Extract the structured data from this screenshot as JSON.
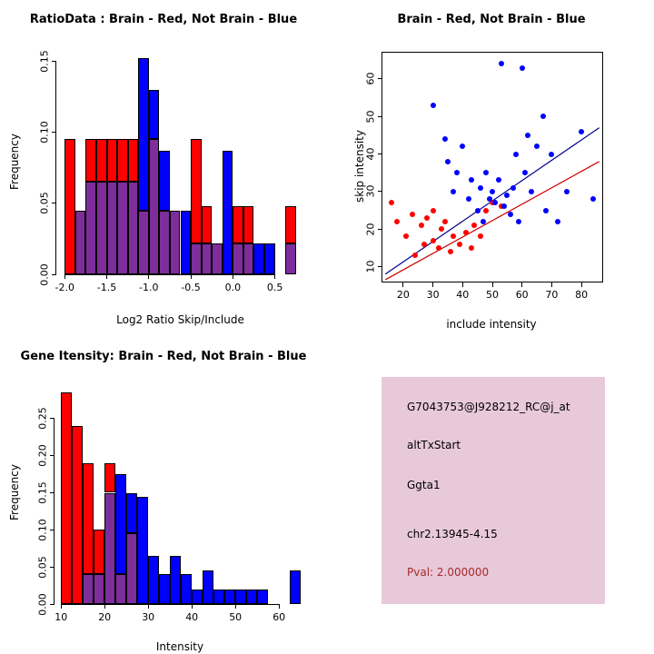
{
  "figure": {
    "background": "#FFFFFF"
  },
  "chart_data": [
    {
      "type": "bar",
      "variant": "overlapping-histogram",
      "title": "RatioData : Brain - Red, Not Brain - Blue",
      "xlabel": "Log2 Ratio Skip/Include",
      "ylabel": "Frequency",
      "xlim": [
        -2.1,
        0.85
      ],
      "ylim": [
        0,
        0.158
      ],
      "xticks": [
        -2.0,
        -1.5,
        -1.0,
        -0.5,
        0.0,
        0.5
      ],
      "xtick_labels": [
        "-2.0",
        "-1.5",
        "-1.0",
        "-0.5",
        "0.0",
        "0.5"
      ],
      "yticks": [
        0,
        0.05,
        0.1,
        0.15
      ],
      "ytick_labels": [
        "0.00",
        "0.05",
        "0.10",
        "0.15"
      ],
      "bin_width": 0.125,
      "bin_starts": [
        -2.0,
        -1.875,
        -1.75,
        -1.625,
        -1.5,
        -1.375,
        -1.25,
        -1.125,
        -1.0,
        -0.875,
        -0.75,
        -0.625,
        -0.5,
        -0.375,
        -0.25,
        -0.125,
        0.0,
        0.125,
        0.25,
        0.375,
        0.5,
        0.625
      ],
      "series": [
        {
          "name": "Brain",
          "color": "#FF0000",
          "values": [
            0.095,
            0.045,
            0.095,
            0.095,
            0.095,
            0.095,
            0.095,
            0.045,
            0.095,
            0.045,
            0.045,
            0,
            0.095,
            0.048,
            0.022,
            0,
            0.048,
            0.048,
            0,
            0,
            0,
            0.048
          ]
        },
        {
          "name": "Not Brain",
          "color": "#0000FF",
          "values": [
            0,
            0.045,
            0.065,
            0.065,
            0.065,
            0.065,
            0.065,
            0.152,
            0.13,
            0.087,
            0.045,
            0.045,
            0.022,
            0.022,
            0.022,
            0.087,
            0.022,
            0.022,
            0.022,
            0.022,
            0,
            0.022
          ]
        }
      ],
      "overlap_color": "#7D2E9A",
      "grid": false
    },
    {
      "type": "scatter",
      "title": "Brain - Red, Not Brain - Blue",
      "xlabel": "include intensity",
      "ylabel": "skip intensity",
      "xlim": [
        13,
        87
      ],
      "ylim": [
        6,
        67
      ],
      "xticks": [
        20,
        30,
        40,
        50,
        60,
        70,
        80
      ],
      "xtick_labels": [
        "20",
        "30",
        "40",
        "50",
        "60",
        "70",
        "80"
      ],
      "yticks": [
        10,
        20,
        30,
        40,
        50,
        60
      ],
      "ytick_labels": [
        "10",
        "20",
        "30",
        "40",
        "50",
        "60"
      ],
      "series": [
        {
          "name": "Brain",
          "color": "#FF0000",
          "points": [
            [
              16,
              27
            ],
            [
              18,
              22
            ],
            [
              21,
              18
            ],
            [
              23,
              24
            ],
            [
              24,
              13
            ],
            [
              26,
              21
            ],
            [
              27,
              16
            ],
            [
              28,
              23
            ],
            [
              30,
              25
            ],
            [
              30,
              17
            ],
            [
              32,
              15
            ],
            [
              33,
              20
            ],
            [
              34,
              22
            ],
            [
              36,
              14
            ],
            [
              37,
              18
            ],
            [
              39,
              16
            ],
            [
              41,
              19
            ],
            [
              43,
              15
            ],
            [
              44,
              21
            ],
            [
              46,
              18
            ],
            [
              48,
              25
            ],
            [
              50,
              27
            ],
            [
              53,
              26
            ]
          ]
        },
        {
          "name": "Not Brain",
          "color": "#0000FF",
          "points": [
            [
              30,
              53
            ],
            [
              34,
              44
            ],
            [
              35,
              38
            ],
            [
              37,
              30
            ],
            [
              38,
              35
            ],
            [
              40,
              42
            ],
            [
              42,
              28
            ],
            [
              43,
              33
            ],
            [
              45,
              25
            ],
            [
              46,
              31
            ],
            [
              47,
              22
            ],
            [
              48,
              35
            ],
            [
              49,
              28
            ],
            [
              50,
              30
            ],
            [
              51,
              27
            ],
            [
              52,
              33
            ],
            [
              53,
              64
            ],
            [
              54,
              26
            ],
            [
              55,
              29
            ],
            [
              56,
              24
            ],
            [
              57,
              31
            ],
            [
              58,
              40
            ],
            [
              59,
              22
            ],
            [
              60,
              63
            ],
            [
              61,
              35
            ],
            [
              62,
              45
            ],
            [
              63,
              30
            ],
            [
              65,
              42
            ],
            [
              67,
              50
            ],
            [
              68,
              25
            ],
            [
              70,
              40
            ],
            [
              72,
              22
            ],
            [
              75,
              30
            ],
            [
              80,
              46
            ],
            [
              84,
              28
            ]
          ]
        }
      ],
      "fit_lines": [
        {
          "name": "not-brain-fit",
          "color": "#00008B",
          "x": [
            14,
            86
          ],
          "y": [
            8,
            47
          ]
        },
        {
          "name": "brain-fit",
          "color": "#CC0000",
          "x": [
            14,
            86
          ],
          "y": [
            6.5,
            38
          ]
        }
      ],
      "grid": false
    },
    {
      "type": "bar",
      "variant": "overlapping-histogram",
      "title": "Gene Itensity: Brain - Red, Not Brain - Blue",
      "xlabel": "Intensity",
      "ylabel": "Frequency",
      "xlim": [
        8.5,
        66
      ],
      "ylim": [
        0,
        0.3
      ],
      "xticks": [
        10,
        20,
        30,
        40,
        50,
        60
      ],
      "xtick_labels": [
        "10",
        "20",
        "30",
        "40",
        "50",
        "60"
      ],
      "yticks": [
        0,
        0.05,
        0.1,
        0.15,
        0.2,
        0.25
      ],
      "ytick_labels": [
        "0.00",
        "0.05",
        "0.10",
        "0.15",
        "0.20",
        "0.25"
      ],
      "bin_width": 2.5,
      "bin_starts": [
        10,
        12.5,
        15,
        17.5,
        20,
        22.5,
        25,
        27.5,
        30,
        32.5,
        35,
        37.5,
        40,
        42.5,
        45,
        47.5,
        50,
        52.5,
        55,
        57.5,
        60,
        62.5
      ],
      "series": [
        {
          "name": "Brain",
          "color": "#FF0000",
          "values": [
            0.285,
            0.24,
            0.19,
            0.1,
            0.19,
            0.04,
            0.095,
            0,
            0,
            0,
            0,
            0,
            0,
            0,
            0,
            0,
            0,
            0,
            0,
            0,
            0,
            0
          ]
        },
        {
          "name": "Not Brain",
          "color": "#0000FF",
          "values": [
            0,
            0,
            0.04,
            0.04,
            0.15,
            0.175,
            0.15,
            0.145,
            0.065,
            0.04,
            0.065,
            0.04,
            0.02,
            0.045,
            0.02,
            0.02,
            0.02,
            0.02,
            0.02,
            0,
            0,
            0.045
          ]
        }
      ],
      "overlap_color": "#7D2E9A",
      "grid": false
    }
  ],
  "info_box": {
    "bg_color": "#E8C9DA",
    "lines": [
      {
        "text": "G7043753@J928212_RC@j_at",
        "color": "#000000"
      },
      {
        "text": "altTxStart",
        "color": "#000000"
      },
      {
        "text": "Ggta1",
        "color": "#000000"
      },
      {
        "text": "chr2.13945-4.15",
        "color": "#000000"
      },
      {
        "text": "Pval: 2.000000",
        "color": "#A52A2A"
      }
    ]
  }
}
